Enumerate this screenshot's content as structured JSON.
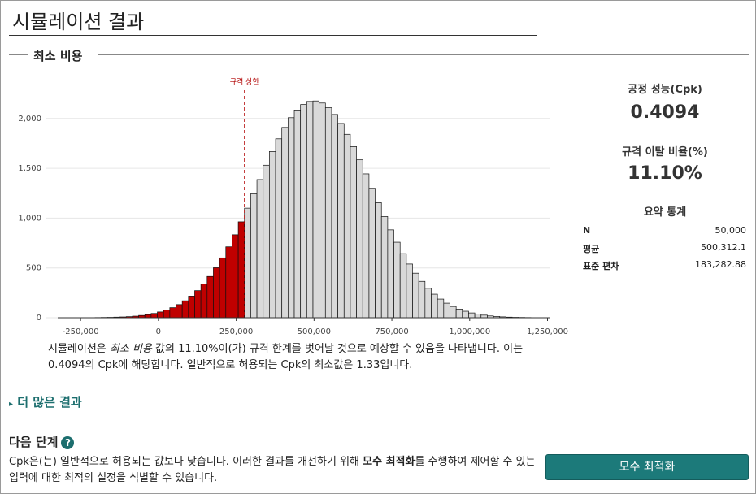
{
  "header": {
    "title": "시뮬레이션 결과"
  },
  "section_title": "최소 비용",
  "chart_data": {
    "type": "histogram",
    "bins": [
      -323500,
      -303500,
      -283500,
      -263500,
      -243500,
      -223500,
      -203500,
      -183500,
      -163500,
      -143500,
      -123500,
      -103500,
      -83500,
      -63500,
      -43500,
      -23500,
      -3500,
      16500,
      36500,
      56500,
      76500,
      96500,
      116500,
      136500,
      156500,
      176500,
      196500,
      216500,
      236500,
      256500,
      276500,
      296500,
      316500,
      336500,
      356500,
      376500,
      396500,
      416500,
      436500,
      456500,
      476500,
      496500,
      516500,
      536500,
      556500,
      576500,
      596500,
      616500,
      636500,
      656500,
      676500,
      696500,
      716500,
      736500,
      756500,
      776500,
      796500,
      816500,
      836500,
      856500,
      876500,
      896500,
      916500,
      936500,
      956500,
      976500,
      996500,
      1016500,
      1036500,
      1056500,
      1076500,
      1096500,
      1116500,
      1136500,
      1156500,
      1176500,
      1196500,
      1216500,
      1236500,
      1256500
    ],
    "counts": [
      0,
      0,
      0,
      0,
      1,
      1,
      2,
      3,
      4,
      6,
      8,
      11,
      16,
      23,
      31,
      43,
      58,
      77,
      101,
      132,
      170,
      217,
      272,
      338,
      414,
      502,
      601,
      712,
      833,
      963,
      1100,
      1244,
      1387,
      1531,
      1669,
      1796,
      1910,
      2008,
      2085,
      2140,
      2171,
      2176,
      2155,
      2108,
      2040,
      1950,
      1841,
      1718,
      1585,
      1444,
      1299,
      1155,
      1016,
      882,
      758,
      643,
      539,
      447,
      365,
      295,
      236,
      187,
      146,
      113,
      86,
      65,
      48,
      36,
      26,
      18,
      13,
      9,
      6,
      4,
      3,
      2,
      1,
      1,
      1
    ],
    "spec_limit": {
      "label": "규격 상한",
      "value": 276500
    },
    "out_color": "#c00000",
    "in_color": "#d9d9d9",
    "xlim": [
      -323500,
      1256500
    ],
    "xticks": [
      {
        "value": -250000,
        "label": "-250,000"
      },
      0,
      {
        "value": 250000,
        "label": "250,000"
      },
      {
        "value": 500000,
        "label": "500,000"
      },
      {
        "value": 750000,
        "label": "750,000"
      },
      {
        "value": 1000000,
        "label": "1,000,000"
      },
      {
        "value": 1250000,
        "label": "1,250,000"
      }
    ],
    "ylim": [
      0,
      2300
    ],
    "yticks": [
      0,
      500,
      {
        "value": 1000,
        "label": "1,000"
      },
      {
        "value": 1500,
        "label": "1,500"
      },
      {
        "value": 2000,
        "label": "2,000"
      }
    ],
    "grid": true
  },
  "stats": {
    "cpk_label": "공정 성능(Cpk)",
    "cpk": "0.4094",
    "out_label": "규격 이탈 비율(%)",
    "out": "11.10%",
    "summary_title": "요약 통계",
    "rows": [
      [
        "N",
        "50,000"
      ],
      [
        "평균",
        "500,312.1"
      ],
      [
        "표준 편차",
        "183,282.88"
      ]
    ]
  },
  "description": [
    "시뮬레이션은 ",
    "최소 비용",
    " 값의 11.10%이(가) 규격 한계를 벗어날 것으로 예상할 수 있음을 나타냅니다. 이는 0.4094의 Cpk에 해당합니다. 일반적으로 허용되는 Cpk의 최소값은 1.33입니다."
  ],
  "more_results": "더 많은 결과",
  "next_steps": {
    "title": "다음 단계",
    "icon": "?",
    "text": [
      "Cpk은(는) 일반적으로 허용되는 값보다 낮습니다. 이러한 결과를 개선하기 위해 ",
      "모수 최적화",
      "를 수행하여 제어할 수 있는 입력에 대한 최적의 설정을 식별할 수 있습니다."
    ],
    "button": "모수 최적화"
  }
}
